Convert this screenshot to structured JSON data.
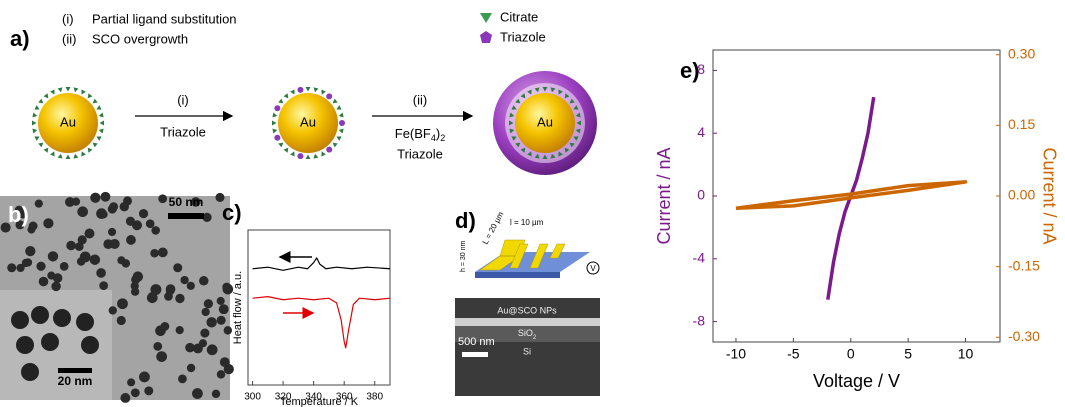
{
  "figure": {
    "a": {
      "label": "a)",
      "steps": [
        {
          "num": "(i)",
          "text": "Partial ligand substitution"
        },
        {
          "num": "(ii)",
          "text": "SCO overgrowth"
        }
      ],
      "legend": [
        "Citrate",
        "Triazole"
      ],
      "particles": [
        "Au",
        "Au",
        "Au"
      ],
      "arrow1": {
        "top": "(i)",
        "bottom": "Triazole"
      },
      "arrow2": {
        "top": "(ii)",
        "reagent": [
          "Fe(BF",
          "4",
          ")",
          "2"
        ],
        "bottom": "Triazole"
      }
    },
    "b": {
      "label": "b)",
      "scale_main": "50 nm",
      "scale_inset": "20 nm"
    },
    "d": {
      "label": "d)",
      "l": "l = 10 µm",
      "L": "L = 20 µm",
      "h": "h = 30 nm",
      "meter": "V",
      "layer_top": "Au@SCO NPs",
      "layer_mid": [
        "SiO",
        "2"
      ],
      "layer_bottom": "Si",
      "scale": "500 nm"
    }
  },
  "chart_data": [
    {
      "type": "line",
      "panel_label": "c)",
      "xlabel": "Temperature / K",
      "ylabel": "Heat flow / a.u.",
      "xlim": [
        297,
        390
      ],
      "xticks": [
        300,
        320,
        340,
        360,
        380
      ],
      "ylim": [
        0,
        10
      ],
      "series": [
        {
          "color": "#000000",
          "x": [
            300,
            310,
            320,
            330,
            336,
            340,
            342,
            344,
            348,
            355,
            365,
            375,
            390
          ],
          "values": [
            7.5,
            7.6,
            7.4,
            7.6,
            7.5,
            7.9,
            8.2,
            7.8,
            7.5,
            7.6,
            7.5,
            7.6,
            7.5
          ]
        },
        {
          "color": "#e00000",
          "x": [
            300,
            310,
            320,
            330,
            340,
            350,
            355,
            358,
            360,
            361,
            363,
            366,
            370,
            380,
            390
          ],
          "values": [
            5.6,
            5.7,
            5.5,
            5.6,
            5.5,
            5.6,
            5.3,
            4.2,
            2.8,
            2.4,
            3.6,
            5.2,
            5.6,
            5.5,
            5.6
          ]
        }
      ]
    },
    {
      "type": "line",
      "panel_label": "e)",
      "xlabel": "Voltage / V",
      "ylabel": "Current / nA",
      "y2label": "Current / nA",
      "xlim": [
        -12,
        13
      ],
      "xticks": [
        -10,
        -5,
        0,
        5,
        10
      ],
      "ylim": [
        -9.3,
        9.3
      ],
      "yticks": [
        -8,
        -4,
        0,
        4,
        8
      ],
      "y2lim": [
        -0.31,
        0.31
      ],
      "y2ticks": [
        {
          "value": -0.3,
          "label": "-0.30"
        },
        {
          "value": -0.15,
          "label": "-0.15"
        },
        {
          "value": 0,
          "label": "0.00"
        },
        {
          "value": 0.15,
          "label": "0.15"
        },
        {
          "value": 0.3,
          "label": "0.30"
        }
      ],
      "series": [
        {
          "color": "#7b1a8c",
          "x": [
            -2,
            -1.5,
            -1,
            -0.5,
            0,
            0.5,
            1,
            1.5,
            2
          ],
          "values": [
            -6.6,
            -4.2,
            -2.4,
            -1.0,
            0,
            1.0,
            2.4,
            4.0,
            6.3
          ]
        },
        {
          "color": "#cc6600",
          "axis": "y2",
          "x": [
            -10,
            -5,
            0,
            5,
            10,
            5,
            0,
            -5,
            -10
          ],
          "values": [
            -0.026,
            -0.021,
            -0.004,
            0.012,
            0.03,
            0.022,
            0.004,
            -0.01,
            -0.026
          ]
        }
      ]
    }
  ]
}
